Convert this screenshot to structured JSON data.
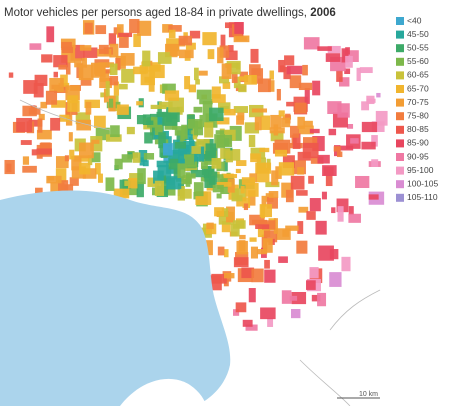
{
  "title": "Motor vehicles per persons aged 18-84 in private dwellings, ",
  "title_year": "2006",
  "legend": [
    {
      "label": "<40",
      "color": "#3ea8cf"
    },
    {
      "label": "45-50",
      "color": "#27a89c"
    },
    {
      "label": "50-55",
      "color": "#3daa68"
    },
    {
      "label": "55-60",
      "color": "#7db84a"
    },
    {
      "label": "60-65",
      "color": "#c9c23a"
    },
    {
      "label": "65-70",
      "color": "#f1b52e"
    },
    {
      "label": "70-75",
      "color": "#f39d34"
    },
    {
      "label": "75-80",
      "color": "#f27c3e"
    },
    {
      "label": "80-85",
      "color": "#ee574c"
    },
    {
      "label": "85-90",
      "color": "#e8465f"
    },
    {
      "label": "90-95",
      "color": "#ef78a3"
    },
    {
      "label": "95-100",
      "color": "#f39ac4"
    },
    {
      "label": "100-105",
      "color": "#d98cd2"
    },
    {
      "label": "105-110",
      "color": "#9c90d3"
    }
  ],
  "scale_bar": "10 km"
}
